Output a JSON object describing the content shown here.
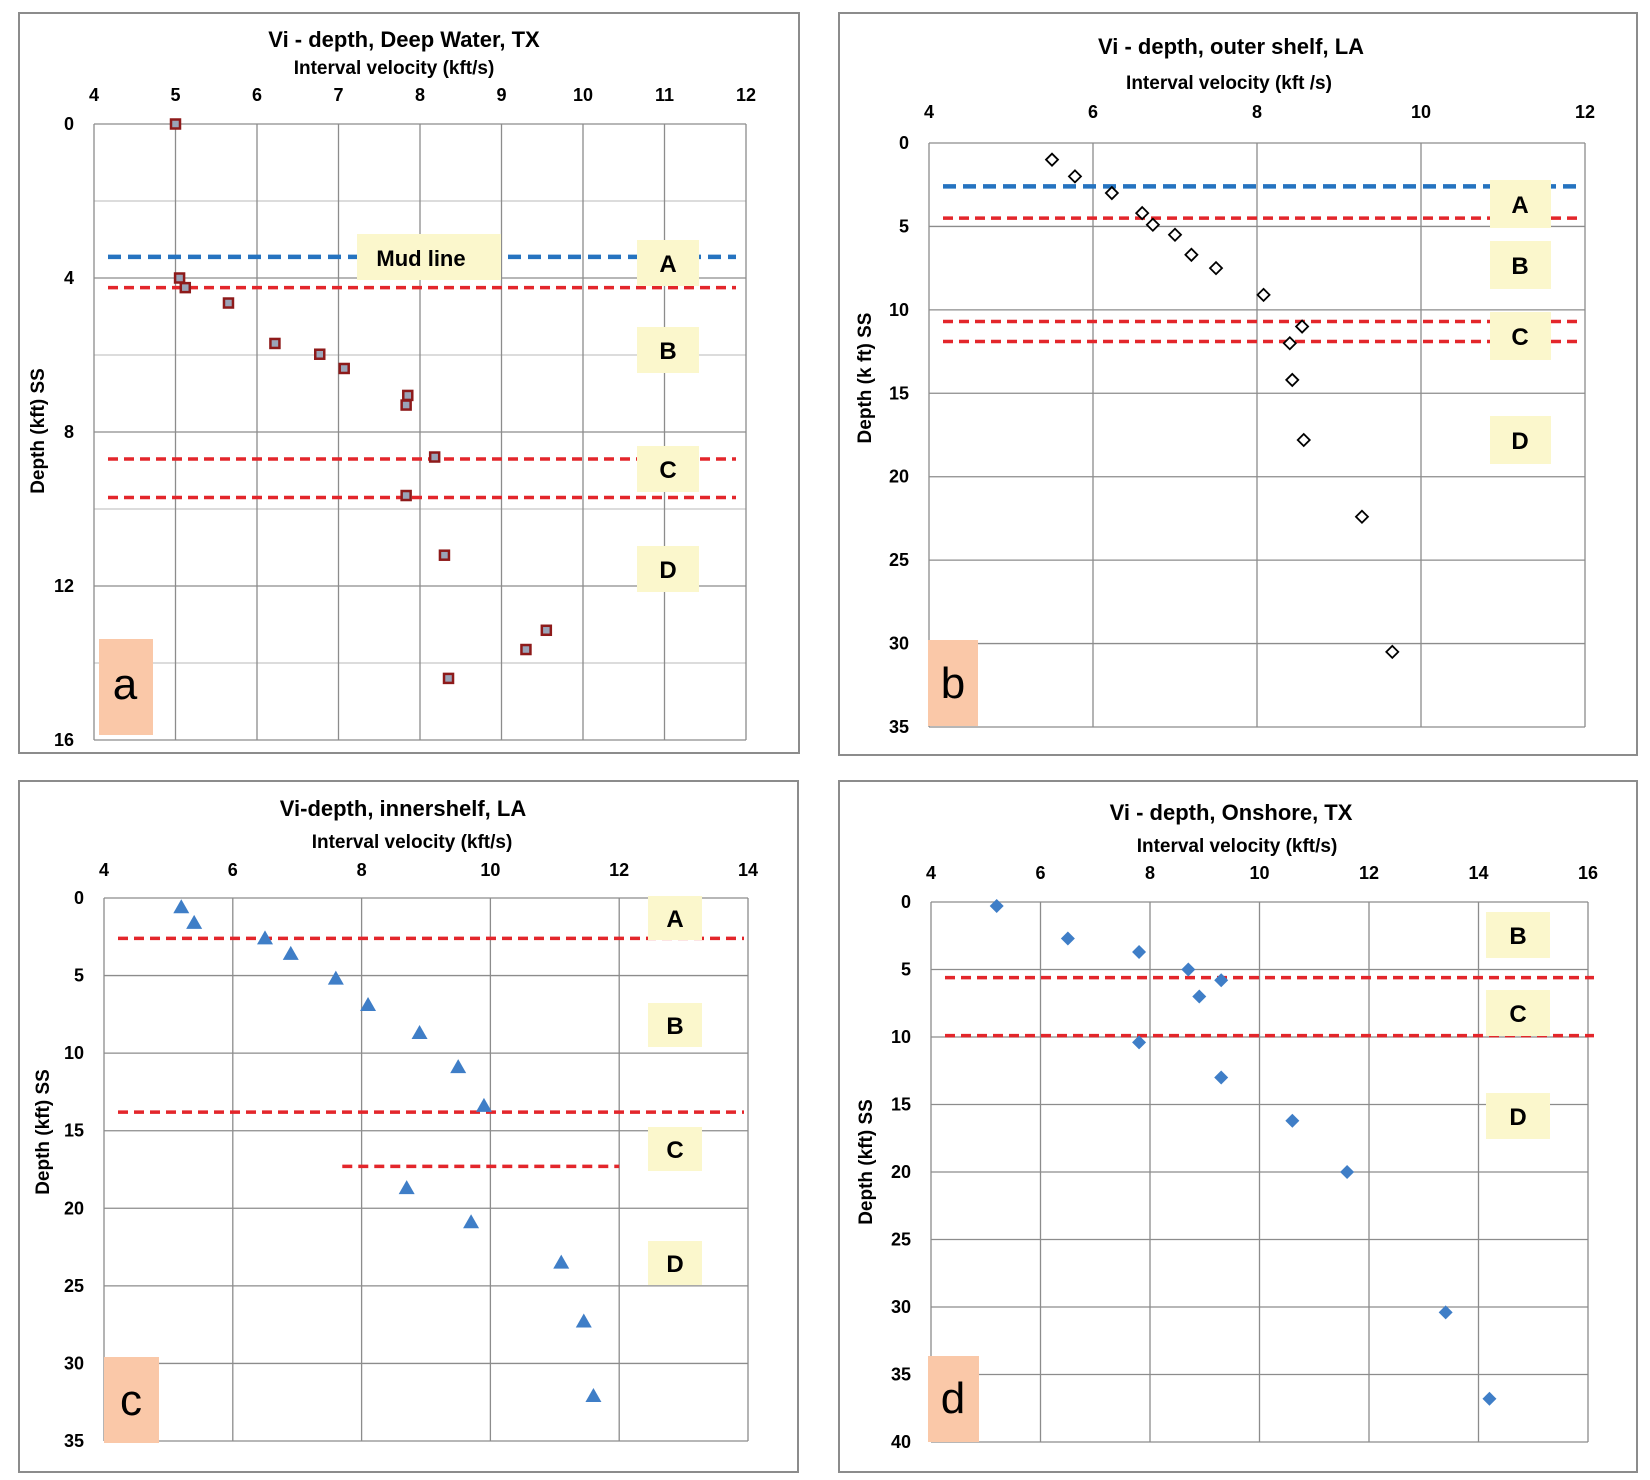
{
  "figure": {
    "colors": {
      "red_line": "#e3262b",
      "blue_line": "#2573c0",
      "zone_fill": "#fbf7cc",
      "letter_fill": "#fac8a8",
      "triangle": "#3f7ec7",
      "diamond": "#3f7ec7"
    }
  },
  "chart_data": [
    {
      "id": "a",
      "type": "scatter",
      "letter": "a",
      "title": "Vi - depth, Deep Water, TX",
      "xlabel": "Interval velocity  (kft/s)",
      "ylabel": "Depth (kft) SS",
      "xlim": [
        4,
        12
      ],
      "xticks": [
        4,
        5,
        6,
        7,
        8,
        9,
        10,
        11,
        12
      ],
      "ylim": [
        0,
        16
      ],
      "yticks": [
        0,
        4,
        8,
        12,
        16
      ],
      "y_minor_grid": [
        2,
        6,
        10,
        14
      ],
      "marker": "square",
      "points": [
        [
          5.0,
          0.0
        ],
        [
          5.05,
          4.0
        ],
        [
          5.12,
          4.25
        ],
        [
          5.65,
          4.65
        ],
        [
          6.22,
          5.7
        ],
        [
          6.77,
          5.98
        ],
        [
          7.07,
          6.35
        ],
        [
          7.85,
          7.05
        ],
        [
          7.83,
          7.3
        ],
        [
          8.18,
          8.65
        ],
        [
          7.83,
          9.65
        ],
        [
          8.3,
          11.2
        ],
        [
          9.55,
          13.15
        ],
        [
          9.3,
          13.65
        ],
        [
          8.35,
          14.4
        ]
      ],
      "lines": [
        {
          "depth": 3.45,
          "color": "blue"
        },
        {
          "depth": 4.25,
          "color": "red"
        },
        {
          "depth": 8.7,
          "color": "red"
        },
        {
          "depth": 9.7,
          "color": "red"
        }
      ],
      "annotations": [
        {
          "text": "Mud line"
        }
      ],
      "zones": [
        {
          "label": "A"
        },
        {
          "label": "B"
        },
        {
          "label": "C"
        },
        {
          "label": "D"
        }
      ]
    },
    {
      "id": "b",
      "type": "scatter",
      "letter": "b",
      "title": "Vi - depth, outer shelf, LA",
      "xlabel": "Interval velocity (kft /s)",
      "ylabel": "Depth (k ft) SS",
      "xlim": [
        4,
        12
      ],
      "xticks": [
        4,
        6,
        8,
        10,
        12
      ],
      "ylim": [
        0,
        35
      ],
      "yticks": [
        0,
        5,
        10,
        15,
        20,
        25,
        30,
        35
      ],
      "marker": "diamond-open",
      "points": [
        [
          5.5,
          1.0
        ],
        [
          5.78,
          2.0
        ],
        [
          6.23,
          3.0
        ],
        [
          6.6,
          4.2
        ],
        [
          6.73,
          4.9
        ],
        [
          7.0,
          5.5
        ],
        [
          7.2,
          6.7
        ],
        [
          7.5,
          7.5
        ],
        [
          8.08,
          9.1
        ],
        [
          8.55,
          11.0
        ],
        [
          8.4,
          12.0
        ],
        [
          8.43,
          14.2
        ],
        [
          8.57,
          17.8
        ],
        [
          9.28,
          22.4
        ],
        [
          9.65,
          30.5
        ]
      ],
      "lines": [
        {
          "depth": 2.6,
          "color": "blue"
        },
        {
          "depth": 4.5,
          "color": "red"
        },
        {
          "depth": 10.7,
          "color": "red"
        },
        {
          "depth": 11.9,
          "color": "red"
        }
      ],
      "zones": [
        {
          "label": "A"
        },
        {
          "label": "B"
        },
        {
          "label": "C"
        },
        {
          "label": "D"
        }
      ]
    },
    {
      "id": "c",
      "type": "scatter",
      "letter": "c",
      "title": "Vi-depth, innershelf, LA",
      "xlabel": "Interval velocity (kft/s)",
      "ylabel": "Depth (kft) SS",
      "xlim": [
        4,
        14
      ],
      "xticks": [
        4,
        6,
        8,
        10,
        12,
        14
      ],
      "ylim": [
        0,
        35
      ],
      "yticks": [
        0,
        5,
        10,
        15,
        20,
        25,
        30,
        35
      ],
      "marker": "triangle",
      "points": [
        [
          5.2,
          0.6
        ],
        [
          5.4,
          1.6
        ],
        [
          6.5,
          2.6
        ],
        [
          6.9,
          3.6
        ],
        [
          7.6,
          5.2
        ],
        [
          8.1,
          6.9
        ],
        [
          8.9,
          8.7
        ],
        [
          9.5,
          10.9
        ],
        [
          9.9,
          13.4
        ],
        [
          8.7,
          18.7
        ],
        [
          9.7,
          20.9
        ],
        [
          11.1,
          23.5
        ],
        [
          11.45,
          27.3
        ],
        [
          11.6,
          32.1
        ]
      ],
      "lines": [
        {
          "depth": 2.6,
          "color": "red"
        },
        {
          "depth": 13.8,
          "color": "red"
        },
        {
          "depth": 17.3,
          "color": "red",
          "from": 7.7,
          "to": 12.0
        }
      ],
      "zones": [
        {
          "label": "A"
        },
        {
          "label": "B"
        },
        {
          "label": "C"
        },
        {
          "label": "D"
        }
      ]
    },
    {
      "id": "d",
      "type": "scatter",
      "letter": "d",
      "title": "Vi - depth, Onshore, TX",
      "xlabel": "Interval velocity  (kft/s)",
      "ylabel": "Depth (kft) SS",
      "xlim": [
        4,
        16
      ],
      "xticks": [
        4,
        6,
        8,
        10,
        12,
        14,
        16
      ],
      "ylim": [
        0,
        40
      ],
      "yticks": [
        0,
        5,
        10,
        15,
        20,
        25,
        30,
        35,
        40
      ],
      "marker": "diamond",
      "points": [
        [
          5.2,
          0.3
        ],
        [
          6.5,
          2.7
        ],
        [
          7.8,
          3.7
        ],
        [
          8.7,
          5.0
        ],
        [
          8.9,
          7.0
        ],
        [
          9.3,
          5.8
        ],
        [
          7.8,
          10.4
        ],
        [
          9.3,
          13.0
        ],
        [
          10.6,
          16.2
        ],
        [
          11.6,
          20.0
        ],
        [
          13.4,
          30.4
        ],
        [
          14.2,
          36.8
        ]
      ],
      "lines": [
        {
          "depth": 5.6,
          "color": "red"
        },
        {
          "depth": 9.9,
          "color": "red"
        }
      ],
      "zones": [
        {
          "label": "B"
        },
        {
          "label": "C"
        },
        {
          "label": "D"
        }
      ]
    }
  ]
}
